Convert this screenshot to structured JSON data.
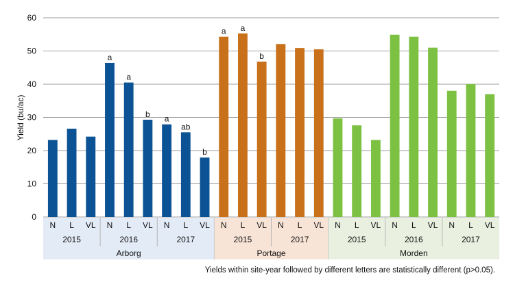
{
  "chart_data": {
    "type": "bar",
    "title": "",
    "xlabel": "",
    "ylabel": "Yield (bu/ac)",
    "ylim": [
      0,
      60
    ],
    "yticks": [
      0,
      10,
      20,
      30,
      40,
      50,
      60
    ],
    "grid": true,
    "footnote": "Yields within site-year followed by different letters are statistically different (p>0.05).",
    "sites": [
      {
        "name": "Arborg",
        "color": "#0b5394",
        "band_color": "#e3ebf7",
        "years": [
          {
            "year": "2015",
            "bars": [
              {
                "treatment": "N",
                "value": 23.2,
                "letter": ""
              },
              {
                "treatment": "L",
                "value": 26.6,
                "letter": ""
              },
              {
                "treatment": "VL",
                "value": 24.2,
                "letter": ""
              }
            ]
          },
          {
            "year": "2016",
            "bars": [
              {
                "treatment": "N",
                "value": 46.4,
                "letter": "a"
              },
              {
                "treatment": "L",
                "value": 40.5,
                "letter": "a"
              },
              {
                "treatment": "VL",
                "value": 29.3,
                "letter": "b"
              }
            ]
          },
          {
            "year": "2017",
            "bars": [
              {
                "treatment": "N",
                "value": 27.9,
                "letter": "a"
              },
              {
                "treatment": "L",
                "value": 25.5,
                "letter": "ab"
              },
              {
                "treatment": "VL",
                "value": 17.9,
                "letter": "b"
              }
            ]
          }
        ]
      },
      {
        "name": "Portage",
        "color": "#c8701a",
        "band_color": "#f8e4d6",
        "years": [
          {
            "year": "2015",
            "bars": [
              {
                "treatment": "N",
                "value": 54.3,
                "letter": "a"
              },
              {
                "treatment": "L",
                "value": 55.3,
                "letter": "a"
              },
              {
                "treatment": "VL",
                "value": 46.8,
                "letter": "b"
              }
            ]
          },
          {
            "year": "2017",
            "bars": [
              {
                "treatment": "N",
                "value": 52.1,
                "letter": ""
              },
              {
                "treatment": "L",
                "value": 50.9,
                "letter": ""
              },
              {
                "treatment": "VL",
                "value": 50.5,
                "letter": ""
              }
            ]
          }
        ]
      },
      {
        "name": "Morden",
        "color": "#7dc142",
        "band_color": "#e9f0e0",
        "years": [
          {
            "year": "2015",
            "bars": [
              {
                "treatment": "N",
                "value": 29.7,
                "letter": ""
              },
              {
                "treatment": "L",
                "value": 27.6,
                "letter": ""
              },
              {
                "treatment": "VL",
                "value": 23.2,
                "letter": ""
              }
            ]
          },
          {
            "year": "2016",
            "bars": [
              {
                "treatment": "N",
                "value": 54.9,
                "letter": ""
              },
              {
                "treatment": "L",
                "value": 54.3,
                "letter": ""
              },
              {
                "treatment": "VL",
                "value": 51.0,
                "letter": ""
              }
            ]
          },
          {
            "year": "2017",
            "bars": [
              {
                "treatment": "N",
                "value": 38.0,
                "letter": ""
              },
              {
                "treatment": "L",
                "value": 40.0,
                "letter": ""
              },
              {
                "treatment": "VL",
                "value": 37.0,
                "letter": ""
              }
            ]
          }
        ]
      }
    ]
  }
}
